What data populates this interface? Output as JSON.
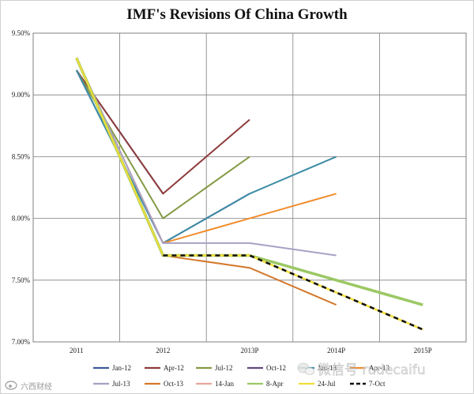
{
  "chart_data": {
    "type": "line",
    "title": "IMF's Revisions Of China Growth",
    "xlabel": "",
    "ylabel": "",
    "categories": [
      "2011",
      "2012",
      "2013P",
      "2014P",
      "2015P"
    ],
    "y_ticks": [
      "7.00%",
      "7.50%",
      "8.00%",
      "8.50%",
      "9.00%",
      "9.50%"
    ],
    "ylim": [
      7.0,
      9.5
    ],
    "grid": true,
    "legend_position": "bottom",
    "series": [
      {
        "name": "Jan-12",
        "color": "#3d5a9a",
        "dashed": false,
        "values": [
          9.2,
          8.2,
          null,
          null,
          null
        ]
      },
      {
        "name": "Apr-12",
        "color": "#8e3b3b",
        "dashed": false,
        "values": [
          9.2,
          8.2,
          8.8,
          null,
          null
        ]
      },
      {
        "name": "Jul-12",
        "color": "#849a45",
        "dashed": false,
        "values": [
          9.2,
          8.0,
          8.5,
          null,
          null
        ]
      },
      {
        "name": "Oct-12",
        "color": "#5f4a7e",
        "dashed": false,
        "values": [
          9.2,
          7.8,
          8.2,
          null,
          null
        ]
      },
      {
        "name": "Jan-13",
        "color": "#3d8ca6",
        "dashed": false,
        "values": [
          9.2,
          7.8,
          8.2,
          8.5,
          null
        ]
      },
      {
        "name": "Apr-13",
        "color": "#f08c2c",
        "dashed": false,
        "values": [
          9.3,
          7.8,
          8.0,
          8.2,
          null
        ]
      },
      {
        "name": "Jul-13",
        "color": "#a9a0c4",
        "dashed": false,
        "values": [
          9.3,
          7.8,
          7.8,
          7.7,
          null
        ]
      },
      {
        "name": "Oct-13",
        "color": "#d4782c",
        "dashed": false,
        "values": [
          9.3,
          7.7,
          7.6,
          7.3,
          null
        ]
      },
      {
        "name": "14-Jan",
        "color": "#e8a39b",
        "dashed": false,
        "values": [
          9.3,
          7.7,
          7.7,
          7.5,
          7.3
        ]
      },
      {
        "name": "8-Apr",
        "color": "#9cc864",
        "dashed": false,
        "values": [
          9.3,
          7.7,
          7.7,
          7.5,
          7.3
        ]
      },
      {
        "name": "24-Jul",
        "color": "#f2de38",
        "dashed": false,
        "values": [
          9.3,
          7.7,
          7.7,
          7.4,
          7.1
        ]
      },
      {
        "name": "7-Oct",
        "color": "#111111",
        "dashed": true,
        "values": [
          null,
          7.7,
          7.7,
          7.4,
          7.1
        ]
      }
    ]
  },
  "icons": {
    "watermark_logo": "wechat-icon",
    "corner_logo": "weibo-icon"
  },
  "watermark": {
    "text": "微信号 rudecaifu",
    "corner_text": "六西财经"
  }
}
